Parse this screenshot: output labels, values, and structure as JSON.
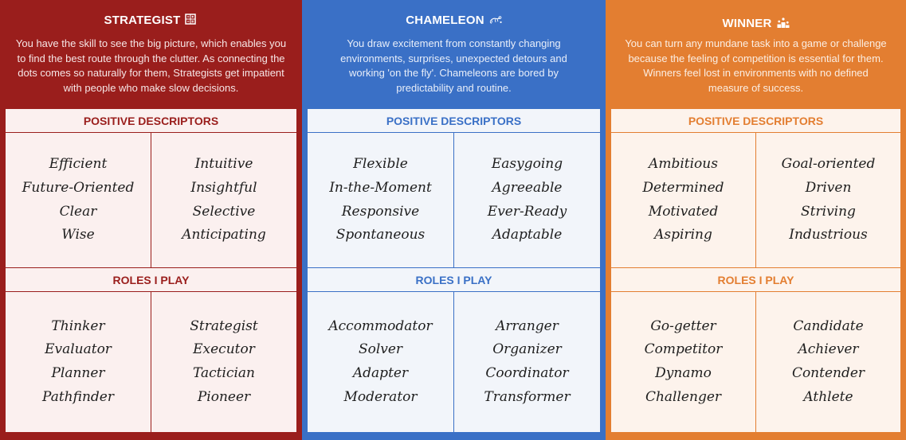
{
  "strategist": {
    "title": "STRATEGIST",
    "icon": "calculator-icon",
    "description": "You have the skill to see the big picture, which enables you to find the best route through the clutter. As connecting the dots comes so naturally for them, Strategists get impatient with people who make slow decisions.",
    "positive_heading": "POSITIVE DESCRIPTORS",
    "positive_left": [
      "Efficient",
      "Future-Oriented",
      "Clear",
      "Wise"
    ],
    "positive_right": [
      "Intuitive",
      "Insightful",
      "Selective",
      "Anticipating"
    ],
    "roles_heading": "ROLES I PLAY",
    "roles_left": [
      "Thinker",
      "Evaluator",
      "Planner",
      "Pathfinder"
    ],
    "roles_right": [
      "Strategist",
      "Executor",
      "Tactician",
      "Pioneer"
    ],
    "color": "#9a1e1c"
  },
  "chameleon": {
    "title": "CHAMELEON",
    "icon": "chameleon-icon",
    "description": "You draw excitement from constantly changing environments, surprises, unexpected detours and working 'on the fly'. Chameleons are bored by predictability and routine.",
    "positive_heading": "POSITIVE DESCRIPTORS",
    "positive_left": [
      "Flexible",
      "In-the-Moment",
      "Responsive",
      "Spontaneous"
    ],
    "positive_right": [
      "Easygoing",
      "Agreeable",
      "Ever-Ready",
      "Adaptable"
    ],
    "roles_heading": "ROLES I PLAY",
    "roles_left": [
      "Accommodator",
      "Solver",
      "Adapter",
      "Moderator"
    ],
    "roles_right": [
      "Arranger",
      "Organizer",
      "Coordinator",
      "Transformer"
    ],
    "color": "#3a70c6"
  },
  "winner": {
    "title": "WINNER",
    "icon": "podium-icon",
    "description": "You can turn any mundane task into a game or challenge because the feeling of competition is essential for them. Winners feel lost in environments with no defined measure of success.",
    "positive_heading": "POSITIVE DESCRIPTORS",
    "positive_left": [
      "Ambitious",
      "Determined",
      "Motivated",
      "Aspiring"
    ],
    "positive_right": [
      "Goal-oriented",
      "Driven",
      "Striving",
      "Industrious"
    ],
    "roles_heading": "ROLES I PLAY",
    "roles_left": [
      "Go-getter",
      "Competitor",
      "Dynamo",
      "Challenger"
    ],
    "roles_right": [
      "Candidate",
      "Achiever",
      "Contender",
      "Athlete"
    ],
    "color": "#e37e31"
  }
}
